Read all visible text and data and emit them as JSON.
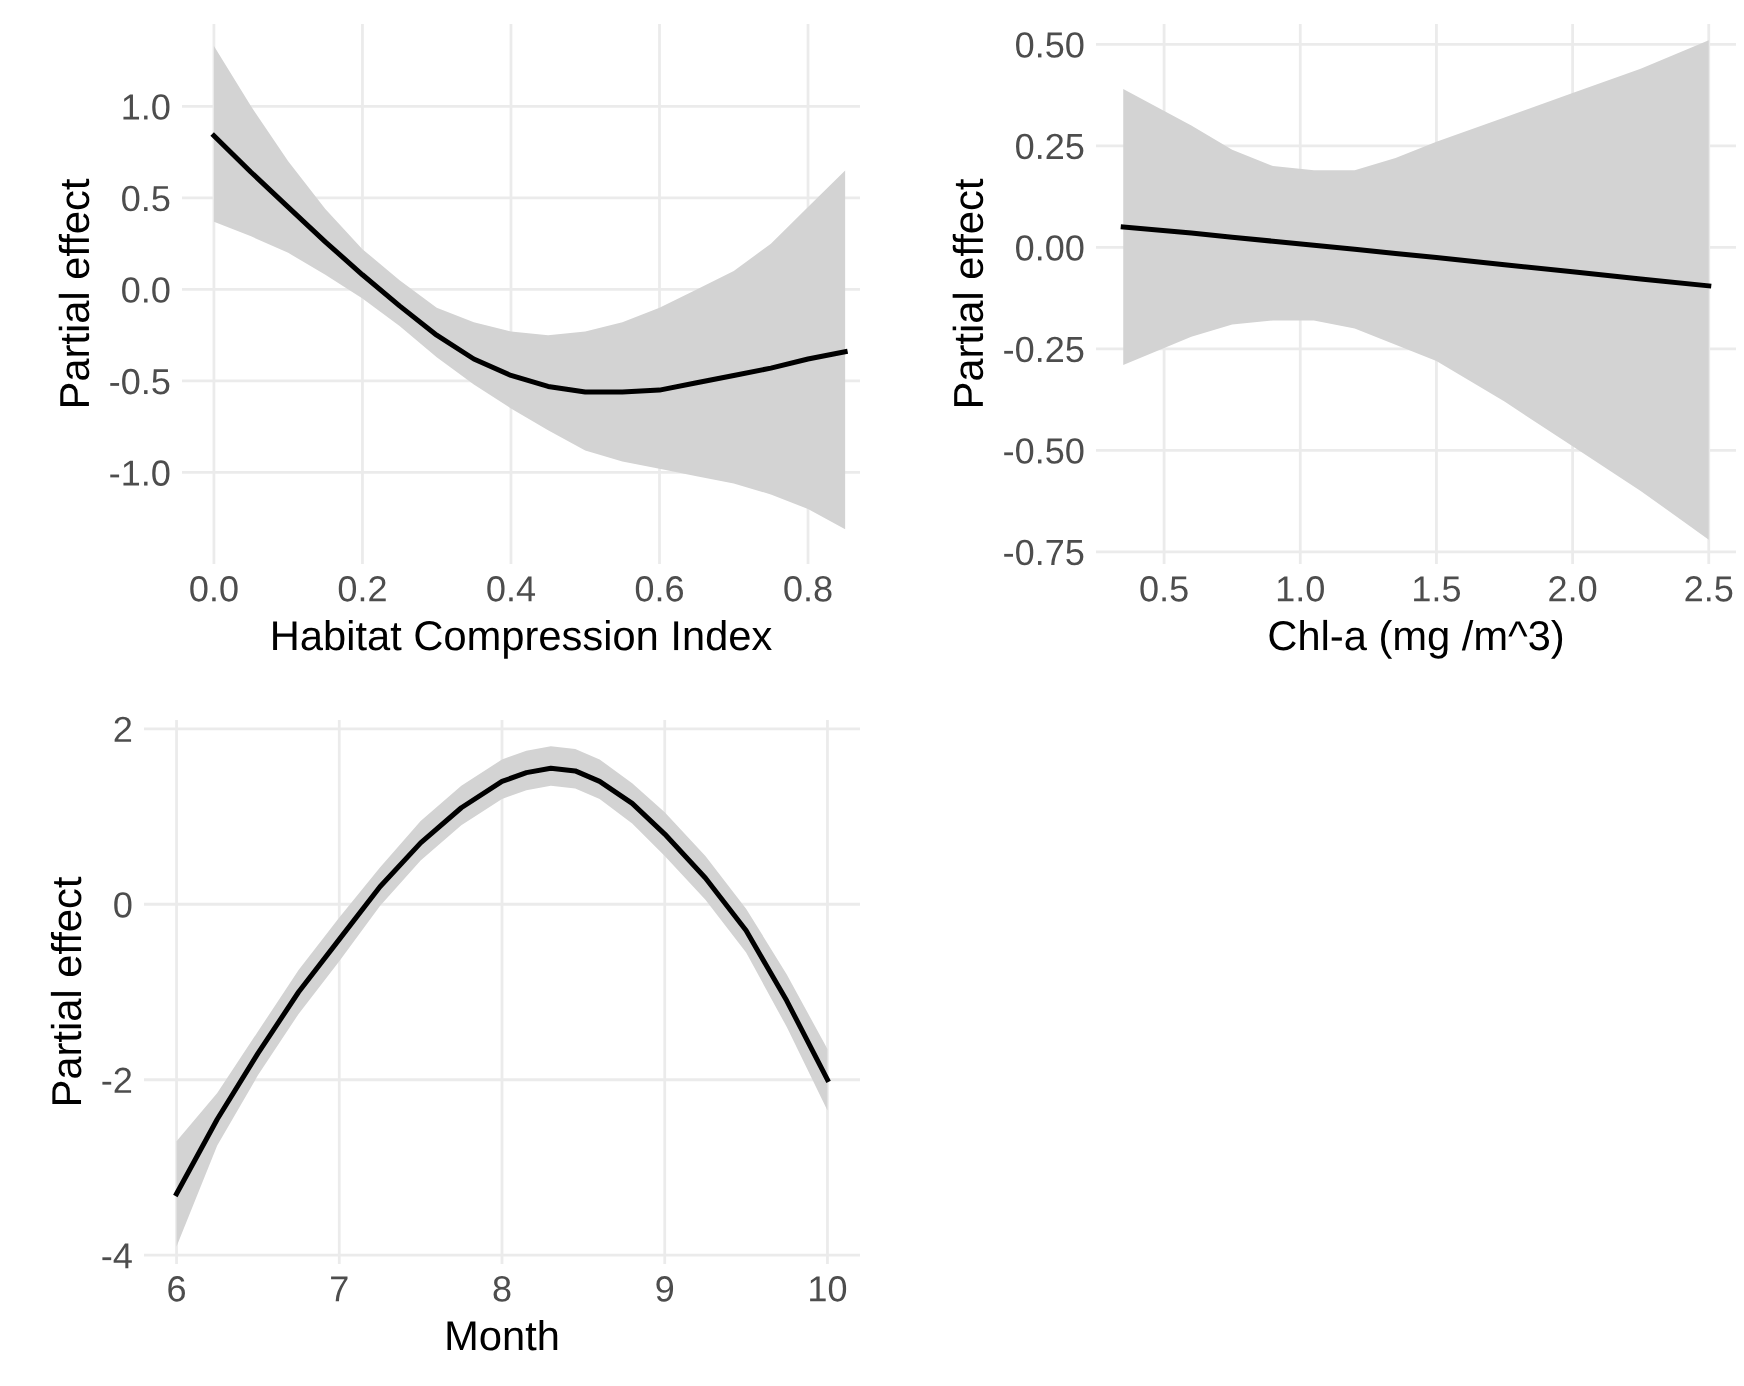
{
  "chart_data": [
    {
      "type": "line",
      "xlabel": "Habitat Compression Index",
      "ylabel": "Partial effect",
      "grid": true,
      "x": [
        0,
        0.05,
        0.1,
        0.15,
        0.2,
        0.25,
        0.3,
        0.35,
        0.4,
        0.45,
        0.5,
        0.55,
        0.6,
        0.65,
        0.7,
        0.75,
        0.8,
        0.85
      ],
      "series": [
        {
          "color": "#000000",
          "values": [
            0.84,
            0.64,
            0.45,
            0.26,
            0.08,
            -0.09,
            -0.25,
            -0.38,
            -0.47,
            -0.53,
            -0.56,
            -0.56,
            -0.55,
            -0.51,
            -0.47,
            -0.43,
            -0.38,
            -0.34
          ],
          "lower": [
            0.37,
            0.29,
            0.2,
            0.08,
            -0.05,
            -0.2,
            -0.37,
            -0.52,
            -0.65,
            -0.77,
            -0.88,
            -0.94,
            -0.98,
            -1.02,
            -1.06,
            -1.12,
            -1.2,
            -1.31
          ],
          "upper": [
            1.33,
            1.0,
            0.7,
            0.44,
            0.22,
            0.05,
            -0.1,
            -0.18,
            -0.23,
            -0.25,
            -0.23,
            -0.18,
            -0.1,
            0.0,
            0.1,
            0.25,
            0.45,
            0.65
          ]
        }
      ],
      "xlim": [
        -0.043,
        0.87
      ],
      "ylim": [
        -1.5,
        1.45
      ],
      "xticks": [
        {
          "value": 0,
          "label": "0.0"
        },
        0.2,
        0.4,
        0.6,
        0.8
      ],
      "yticks": [
        {
          "value": -1,
          "label": "-1.0"
        },
        -0.5,
        {
          "value": 0,
          "label": "0.0"
        },
        0.5,
        {
          "value": 1,
          "label": "1.0"
        }
      ]
    },
    {
      "type": "line",
      "xlabel": "Chl-a (mg /m^3)",
      "ylabel": "Partial effect",
      "grid": true,
      "x": [
        0.35,
        0.6,
        0.75,
        0.9,
        1.05,
        1.2,
        1.35,
        1.5,
        1.75,
        2.0,
        2.25,
        2.5
      ],
      "series": [
        {
          "color": "#000000",
          "values": [
            0.05,
            0.035,
            0.025,
            0.015,
            0.005,
            -0.005,
            -0.015,
            -0.025,
            -0.043,
            -0.06,
            -0.078,
            -0.095
          ],
          "lower": [
            -0.29,
            -0.22,
            -0.19,
            -0.18,
            -0.18,
            -0.2,
            -0.24,
            -0.28,
            -0.38,
            -0.49,
            -0.6,
            -0.72
          ],
          "upper": [
            0.39,
            0.3,
            0.24,
            0.2,
            0.19,
            0.19,
            0.22,
            0.26,
            0.32,
            0.38,
            0.44,
            0.51
          ]
        }
      ],
      "xlim": [
        0.25,
        2.6
      ],
      "ylim": [
        -0.78,
        0.55
      ],
      "xticks": [
        0.5,
        {
          "value": 1,
          "label": "1.0"
        },
        1.5,
        {
          "value": 2,
          "label": "2.0"
        },
        2.5
      ],
      "yticks": [
        {
          "value": -0.75,
          "label": "-0.75"
        },
        {
          "value": -0.5,
          "label": "-0.50"
        },
        {
          "value": -0.25,
          "label": "-0.25"
        },
        {
          "value": 0,
          "label": "0.00"
        },
        0.25,
        {
          "value": 0.5,
          "label": "0.50"
        }
      ]
    },
    {
      "type": "line",
      "xlabel": "Month",
      "ylabel": "Partial effect",
      "grid": true,
      "x": [
        6,
        6.25,
        6.5,
        6.75,
        7,
        7.25,
        7.5,
        7.75,
        8,
        8.15,
        8.3,
        8.45,
        8.6,
        8.8,
        9,
        9.25,
        9.5,
        9.75,
        10
      ],
      "series": [
        {
          "color": "#000000",
          "values": [
            -3.3,
            -2.45,
            -1.7,
            -1.0,
            -0.4,
            0.2,
            0.7,
            1.1,
            1.4,
            1.5,
            1.55,
            1.52,
            1.4,
            1.15,
            0.8,
            0.3,
            -0.3,
            -1.1,
            -2.0
          ],
          "lower": [
            -3.9,
            -2.75,
            -1.95,
            -1.25,
            -0.65,
            -0.02,
            0.5,
            0.9,
            1.2,
            1.3,
            1.35,
            1.32,
            1.2,
            0.92,
            0.55,
            0.05,
            -0.55,
            -1.4,
            -2.35
          ],
          "upper": [
            -2.7,
            -2.15,
            -1.45,
            -0.75,
            -0.15,
            0.42,
            0.95,
            1.35,
            1.65,
            1.75,
            1.8,
            1.77,
            1.65,
            1.38,
            1.05,
            0.55,
            -0.05,
            -0.8,
            -1.65
          ]
        }
      ],
      "xlim": [
        5.8,
        10.2
      ],
      "ylim": [
        -4.1,
        2.1
      ],
      "xticks": [
        6,
        7,
        8,
        9,
        10
      ],
      "yticks": [
        -4,
        -2,
        0,
        2
      ]
    }
  ]
}
